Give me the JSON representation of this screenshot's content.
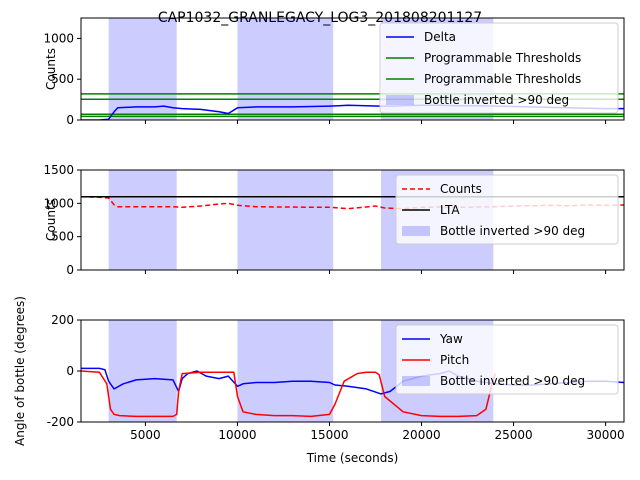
{
  "figure": {
    "title": "CAP1032_GRANLEGACY_LOG3_201808201127"
  },
  "chart_data": [
    {
      "type": "line",
      "title": "CAP1032_GRANLEGACY_LOG3_201808201127",
      "ylabel": "Counts",
      "xlabel": "",
      "xlim": [
        1500,
        31000
      ],
      "ylim": [
        0,
        1250
      ],
      "yticks": [
        0,
        500,
        1000
      ],
      "grid": false,
      "legend_position": "top-right",
      "shaded_regions": {
        "name": "Bottle inverted >90 deg",
        "color": "#0000ff",
        "alpha": 0.2,
        "ranges": [
          [
            3000,
            6700
          ],
          [
            10000,
            15200
          ],
          [
            17800,
            23900
          ]
        ]
      },
      "hlines": [
        {
          "name": "Programmable Thresholds",
          "color": "#008000",
          "y": 320
        },
        {
          "name": "Programmable Thresholds",
          "color": "#008000",
          "y": 255
        },
        {
          "name": "",
          "color": "#008000",
          "y": 70
        },
        {
          "name": "",
          "color": "#008000",
          "y": 45
        }
      ],
      "series": [
        {
          "name": "Delta",
          "color": "#0000ff",
          "style": "solid",
          "x": [
            1500,
            2500,
            3000,
            3300,
            3500,
            4500,
            5500,
            6000,
            6500,
            7000,
            8000,
            9000,
            9500,
            10000,
            11000,
            12000,
            13000,
            14000,
            15000,
            15500,
            16000,
            17000,
            17800,
            18500,
            19000,
            20000,
            21000,
            22000,
            23000,
            24000,
            25000,
            26000,
            27000,
            28000,
            29000,
            30000,
            31000
          ],
          "y": [
            0,
            0,
            10,
            100,
            150,
            160,
            160,
            170,
            150,
            140,
            130,
            100,
            80,
            150,
            160,
            160,
            160,
            165,
            170,
            175,
            180,
            175,
            170,
            170,
            175,
            180,
            180,
            175,
            175,
            170,
            165,
            160,
            155,
            150,
            145,
            140,
            140
          ]
        }
      ],
      "legend": [
        "Delta",
        "Programmable Thresholds",
        "Programmable Thresholds",
        "Bottle inverted >90 deg"
      ]
    },
    {
      "type": "line",
      "title": "",
      "ylabel": "Counts",
      "xlabel": "",
      "xlim": [
        1500,
        31000
      ],
      "ylim": [
        0,
        1500
      ],
      "yticks": [
        0,
        500,
        1000,
        1500
      ],
      "grid": false,
      "legend_position": "right",
      "shaded_regions": {
        "name": "Bottle inverted >90 deg",
        "color": "#0000ff",
        "alpha": 0.2,
        "ranges": [
          [
            3000,
            6700
          ],
          [
            10000,
            15200
          ],
          [
            17800,
            23900
          ]
        ]
      },
      "series": [
        {
          "name": "Counts",
          "color": "#ff0000",
          "style": "dashed",
          "x": [
            1500,
            2500,
            3000,
            3300,
            3500,
            5000,
            6500,
            7000,
            8000,
            9000,
            9500,
            10000,
            11000,
            12000,
            13000,
            14000,
            15000,
            15500,
            16000,
            17000,
            17500,
            18000,
            19000,
            20000,
            21000,
            22000,
            23000,
            24000,
            25000,
            26000,
            27000,
            28000,
            29000,
            30000,
            31000
          ],
          "y": [
            1100,
            1090,
            1080,
            980,
            950,
            950,
            950,
            940,
            960,
            990,
            1000,
            970,
            950,
            945,
            945,
            940,
            940,
            930,
            920,
            945,
            960,
            930,
            920,
            940,
            945,
            940,
            945,
            950,
            960,
            965,
            970,
            965,
            975,
            970,
            975
          ]
        },
        {
          "name": "LTA",
          "color": "#000000",
          "style": "solid",
          "x": [
            1500,
            31000
          ],
          "y": [
            1100,
            1100
          ]
        }
      ],
      "legend": [
        "Counts",
        "LTA",
        "Bottle inverted >90 deg"
      ]
    },
    {
      "type": "line",
      "title": "",
      "ylabel": "Angle of bottle (degrees)",
      "xlabel": "Time (seconds)",
      "xlim": [
        1500,
        31000
      ],
      "ylim": [
        -200,
        200
      ],
      "yticks": [
        -200,
        0,
        200
      ],
      "xticks": [
        5000,
        10000,
        15000,
        20000,
        25000,
        30000
      ],
      "grid": false,
      "legend_position": "right",
      "shaded_regions": {
        "name": "Bottle inverted >90 deg",
        "color": "#0000ff",
        "alpha": 0.2,
        "ranges": [
          [
            3000,
            6700
          ],
          [
            10000,
            15200
          ],
          [
            17800,
            23900
          ]
        ]
      },
      "series": [
        {
          "name": "Yaw",
          "color": "#0000ff",
          "style": "solid",
          "x": [
            1500,
            2500,
            2800,
            3000,
            3300,
            3800,
            4500,
            5500,
            6500,
            6800,
            7000,
            7300,
            7800,
            8300,
            9000,
            9500,
            10000,
            10300,
            11000,
            12000,
            13000,
            14000,
            15000,
            15300,
            16000,
            17000,
            17800,
            18300,
            19000,
            20000,
            21000,
            21500,
            22000,
            23000,
            24000,
            25000,
            26000,
            27000,
            28000,
            29000,
            30000,
            31000
          ],
          "y": [
            10,
            10,
            5,
            -40,
            -70,
            -50,
            -35,
            -30,
            -35,
            -80,
            -30,
            -10,
            0,
            -20,
            -30,
            -20,
            -60,
            -50,
            -45,
            -45,
            -40,
            -40,
            -45,
            -55,
            -60,
            -70,
            -90,
            -80,
            -40,
            -20,
            -10,
            0,
            -20,
            -40,
            -50,
            -55,
            -55,
            -50,
            -45,
            -40,
            -40,
            -45
          ]
        },
        {
          "name": "Pitch",
          "color": "#ff0000",
          "style": "solid",
          "x": [
            1500,
            2500,
            2900,
            3100,
            3300,
            3600,
            4500,
            5500,
            6500,
            6700,
            6800,
            7000,
            8000,
            9000,
            9800,
            10000,
            10300,
            11000,
            12000,
            13000,
            14000,
            15000,
            15300,
            15800,
            16500,
            17000,
            17500,
            17700,
            18000,
            19000,
            20000,
            21000,
            22000,
            23000,
            23500,
            23800,
            24000
          ],
          "y": [
            0,
            -5,
            -50,
            -150,
            -170,
            -175,
            -178,
            -178,
            -178,
            -170,
            -80,
            -10,
            -5,
            -5,
            -5,
            -100,
            -160,
            -170,
            -175,
            -175,
            -178,
            -170,
            -130,
            -40,
            -10,
            -5,
            -5,
            -15,
            -100,
            -160,
            -175,
            -178,
            -178,
            -175,
            -150,
            -60,
            -10
          ]
        }
      ],
      "legend": [
        "Yaw",
        "Pitch",
        "Bottle inverted >90 deg"
      ]
    }
  ]
}
